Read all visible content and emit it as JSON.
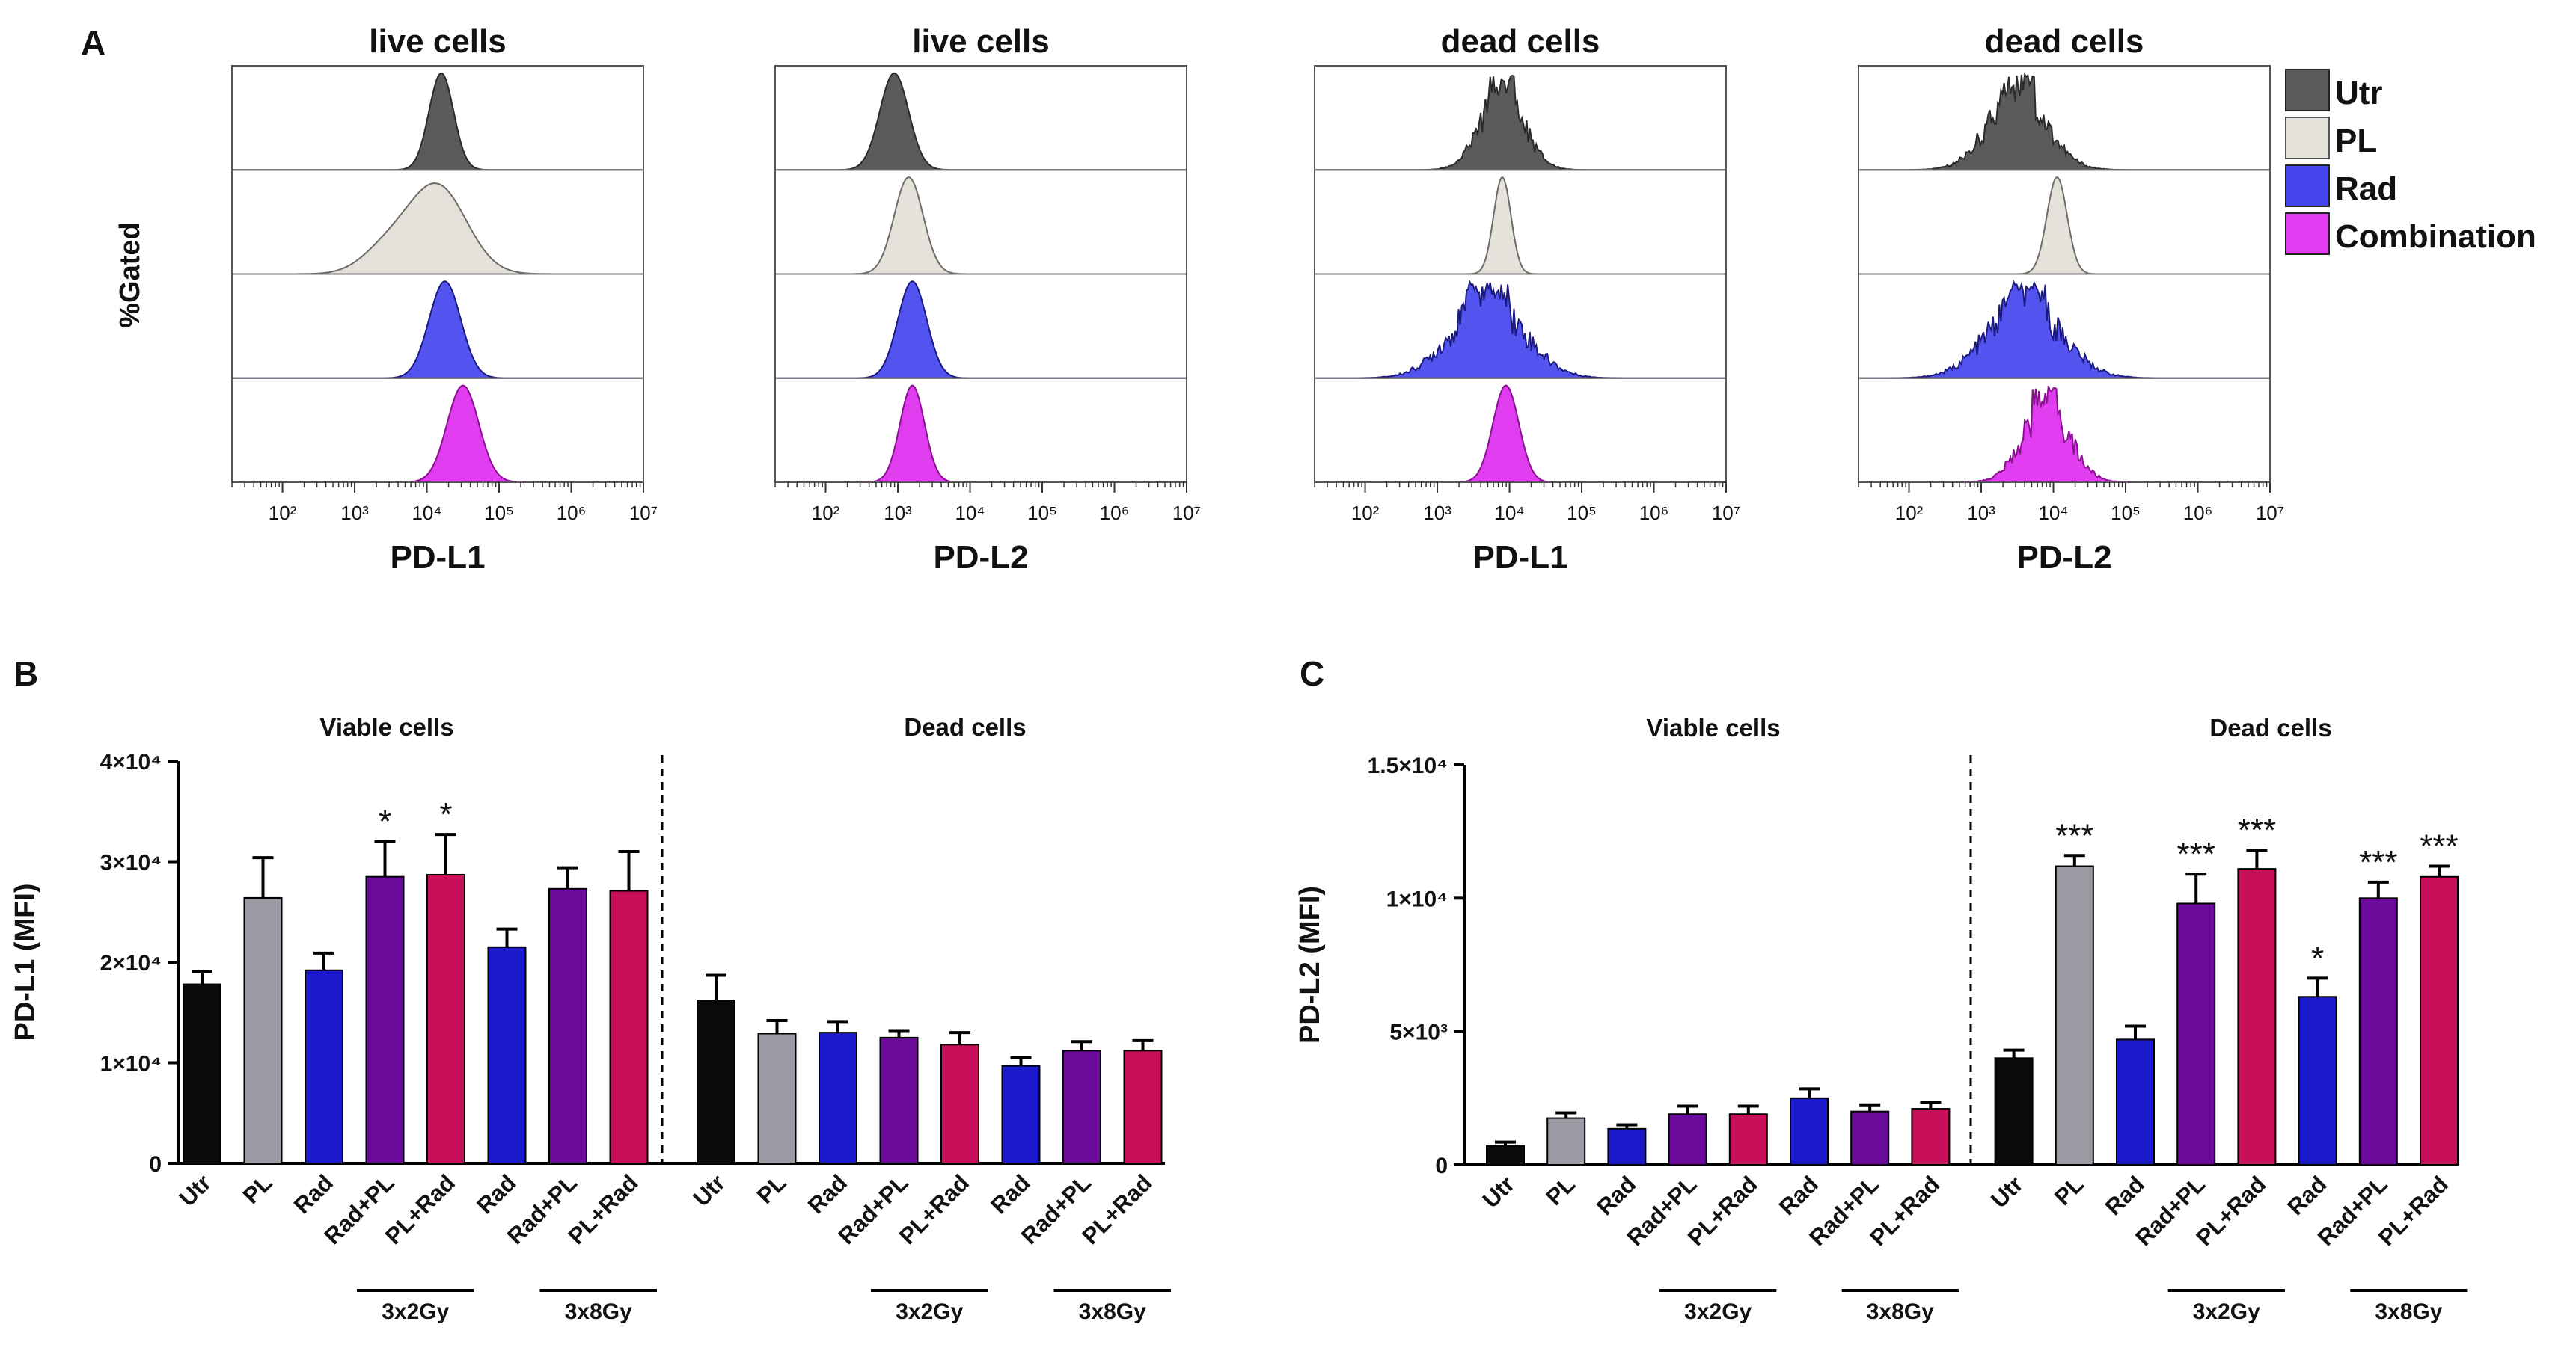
{
  "panels": {
    "a": "A",
    "b": "B",
    "c": "C"
  },
  "colors": {
    "utr_hist": "#5a5a5a",
    "pl_hist": "#e5e2dc",
    "rad_hist": "#4444ee",
    "comb_hist": "#e03cf0",
    "utr": "#0a0a0a",
    "pl": "#9a9aa2",
    "rad": "#1a1acc",
    "radpl": "#6a0a9a",
    "plrad": "#c8105a"
  },
  "histograms": {
    "ylabel": "%Gated",
    "legend": [
      "Utr",
      "PL",
      "Rad",
      "Combination"
    ],
    "axis_min_exp": 1.3,
    "axis_max_exp": 7,
    "panels": [
      {
        "title": "live cells",
        "xlabel": "PD-L1",
        "ticks": [
          "10²",
          "10³",
          "10⁴",
          "10⁵",
          "10⁶",
          "10⁷"
        ],
        "tick_exps": [
          2,
          3,
          4,
          5,
          6,
          7
        ],
        "rows": [
          {
            "type": "peak",
            "center": 4.2,
            "sd": 0.17
          },
          {
            "type": "broad",
            "center": 4.15,
            "sd": 0.4
          },
          {
            "type": "peak",
            "center": 4.25,
            "sd": 0.22
          },
          {
            "type": "peak",
            "center": 4.5,
            "sd": 0.22
          }
        ]
      },
      {
        "title": "live cells",
        "xlabel": "PD-L2",
        "ticks": [
          "10²",
          "10³",
          "10⁴",
          "10⁵",
          "10⁶",
          "10⁷"
        ],
        "tick_exps": [
          2,
          3,
          4,
          5,
          6,
          7
        ],
        "rows": [
          {
            "type": "peak",
            "center": 2.95,
            "sd": 0.2
          },
          {
            "type": "peak",
            "center": 3.15,
            "sd": 0.2
          },
          {
            "type": "peak",
            "center": 3.2,
            "sd": 0.2
          },
          {
            "type": "peak",
            "center": 3.2,
            "sd": 0.17
          }
        ]
      },
      {
        "title": "dead cells",
        "xlabel": "PD-L1",
        "ticks": [
          "10²",
          "10³",
          "10⁴",
          "10⁵",
          "10⁶",
          "10⁷"
        ],
        "tick_exps": [
          2,
          3,
          4,
          5,
          6,
          7
        ],
        "rows": [
          {
            "type": "noisy",
            "center": 3.9,
            "sd": 0.3
          },
          {
            "type": "peak",
            "center": 3.9,
            "sd": 0.12
          },
          {
            "type": "noisy",
            "center": 3.7,
            "sd": 0.5
          },
          {
            "type": "peak",
            "center": 3.95,
            "sd": 0.18
          }
        ]
      },
      {
        "title": "dead cells",
        "xlabel": "PD-L2",
        "ticks": [
          "10²",
          "10³",
          "10⁴",
          "10⁵",
          "10⁶",
          "10⁷"
        ],
        "tick_exps": [
          2,
          3,
          4,
          5,
          6,
          7
        ],
        "rows": [
          {
            "type": "noisy",
            "center": 3.5,
            "sd": 0.4
          },
          {
            "type": "peak",
            "center": 4.05,
            "sd": 0.14
          },
          {
            "type": "noisy",
            "center": 3.6,
            "sd": 0.5
          },
          {
            "type": "noisy",
            "center": 3.9,
            "sd": 0.32
          }
        ]
      }
    ]
  },
  "chart_data": [
    {
      "type": "bar",
      "title": "",
      "ylabel": "PD-L1 (MFI)",
      "ylim": [
        0,
        40000
      ],
      "yticks": [
        0,
        10000,
        20000,
        30000,
        40000
      ],
      "ytick_labels": [
        "0",
        "1×10⁴",
        "2×10⁴",
        "3×10⁴",
        "4×10⁴"
      ],
      "sections": [
        "Viable cells",
        "Dead cells"
      ],
      "categories": [
        "Utr",
        "PL",
        "Rad",
        "Rad+PL",
        "PL+Rad",
        "Rad",
        "Rad+PL",
        "PL+Rad",
        "Utr",
        "PL",
        "Rad",
        "Rad+PL",
        "PL+Rad",
        "Rad",
        "Rad+PL",
        "PL+Rad"
      ],
      "values": [
        17800,
        26400,
        19200,
        28500,
        28700,
        21500,
        27300,
        27100,
        16200,
        12900,
        13000,
        12500,
        11800,
        9700,
        11200,
        11200
      ],
      "errors": [
        1300,
        4000,
        1700,
        3500,
        4000,
        1800,
        2100,
        3900,
        2500,
        1300,
        1100,
        700,
        1200,
        800,
        900,
        1000
      ],
      "colors": [
        "utr",
        "pl",
        "rad",
        "radpl",
        "plrad",
        "rad",
        "radpl",
        "plrad",
        "utr",
        "pl",
        "rad",
        "radpl",
        "plrad",
        "rad",
        "radpl",
        "plrad"
      ],
      "significance": [
        "",
        "",
        "",
        "*",
        "*",
        "",
        "",
        "",
        "",
        "",
        "",
        "",
        "",
        "",
        "",
        ""
      ],
      "dose_groups": [
        {
          "label": "3x2Gy",
          "start": 3,
          "end": 4
        },
        {
          "label": "3x8Gy",
          "start": 6,
          "end": 7
        },
        {
          "label": "3x2Gy",
          "start": 11,
          "end": 12
        },
        {
          "label": "3x8Gy",
          "start": 14,
          "end": 15
        }
      ]
    },
    {
      "type": "bar",
      "title": "",
      "ylabel": "PD-L2 (MFI)",
      "ylim": [
        0,
        15000
      ],
      "yticks": [
        0,
        5000,
        10000,
        15000
      ],
      "ytick_labels": [
        "0",
        "5×10³",
        "1×10⁴",
        "1.5×10⁴"
      ],
      "sections": [
        "Viable cells",
        "Dead cells"
      ],
      "categories": [
        "Utr",
        "PL",
        "Rad",
        "Rad+PL",
        "PL+Rad",
        "Rad",
        "Rad+PL",
        "PL+Rad",
        "Utr",
        "PL",
        "Rad",
        "Rad+PL",
        "PL+Rad",
        "Rad",
        "Rad+PL",
        "PL+Rad"
      ],
      "values": [
        700,
        1750,
        1350,
        1900,
        1900,
        2500,
        2000,
        2100,
        4000,
        11200,
        4700,
        9800,
        11100,
        6300,
        10000,
        10800
      ],
      "errors": [
        150,
        200,
        150,
        300,
        300,
        350,
        250,
        250,
        300,
        400,
        500,
        1100,
        700,
        700,
        600,
        400
      ],
      "colors": [
        "utr",
        "pl",
        "rad",
        "radpl",
        "plrad",
        "rad",
        "radpl",
        "plrad",
        "utr",
        "pl",
        "rad",
        "radpl",
        "plrad",
        "rad",
        "radpl",
        "plrad"
      ],
      "significance": [
        "",
        "",
        "",
        "",
        "",
        "",
        "",
        "",
        "",
        "***",
        "",
        "***",
        "***",
        "*",
        "***",
        "***"
      ],
      "dose_groups": [
        {
          "label": "3x2Gy",
          "start": 3,
          "end": 4
        },
        {
          "label": "3x8Gy",
          "start": 6,
          "end": 7
        },
        {
          "label": "3x2Gy",
          "start": 11,
          "end": 12
        },
        {
          "label": "3x8Gy",
          "start": 14,
          "end": 15
        }
      ]
    }
  ]
}
